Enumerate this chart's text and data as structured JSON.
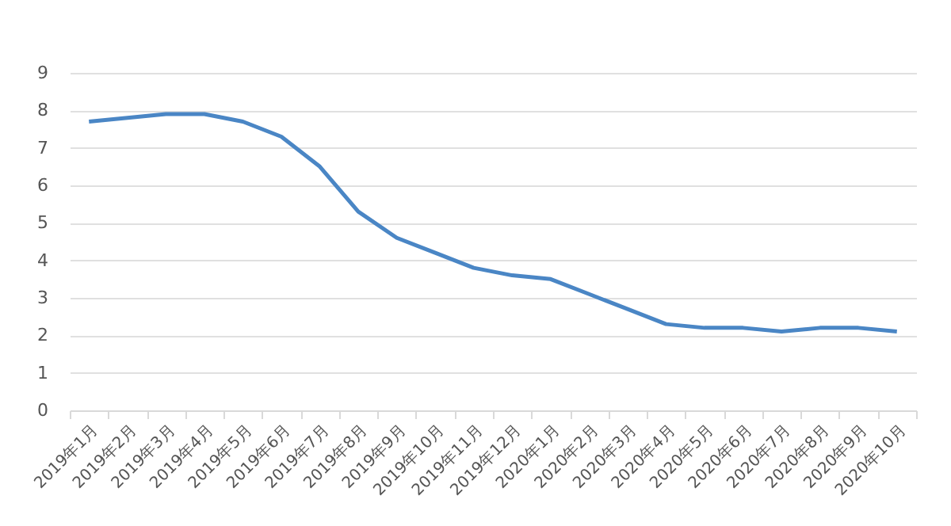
{
  "chart_data": {
    "type": "line",
    "categories": [
      "2019年1月",
      "2019年2月",
      "2019年3月",
      "2019年4月",
      "2019年5月",
      "2019年6月",
      "2019年7月",
      "2019年8月",
      "2019年9月",
      "2019年10月",
      "2019年11月",
      "2019年12月",
      "2020年1月",
      "2020年2月",
      "2020年3月",
      "2020年4月",
      "2020年5月",
      "2020年6月",
      "2020年7月",
      "2020年8月",
      "2020年9月",
      "2020年10月"
    ],
    "series": [
      {
        "color": "#4a86c5",
        "values": [
          7.7,
          7.8,
          7.9,
          7.9,
          7.7,
          7.3,
          6.5,
          5.3,
          4.6,
          4.2,
          3.8,
          3.6,
          3.5,
          3.1,
          2.7,
          2.3,
          2.2,
          2.2,
          2.1,
          2.2,
          2.2,
          2.1
        ]
      }
    ],
    "ylim": [
      0,
      9
    ],
    "yticks": [
      0,
      1,
      2,
      3,
      4,
      5,
      6,
      7,
      8,
      9
    ],
    "grid": "y",
    "legend": false,
    "marker": "none",
    "line_style": "solid"
  }
}
